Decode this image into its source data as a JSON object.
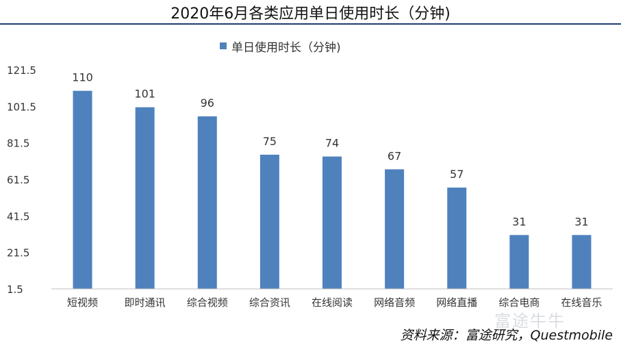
{
  "page": {
    "title": "2020年6月各类应用单日使用时长（分钟)",
    "source_note": "资料来源：富途研究，Questmobile",
    "watermark": "富途牛牛"
  },
  "colors": {
    "bar": "#4f81bd",
    "title_rule": "#1f3c73",
    "axis": "#bfbfbf",
    "text": "#111111"
  },
  "chart_data": {
    "type": "bar",
    "title": "",
    "legend": {
      "position": "top",
      "entries": [
        "单日使用时长（分钟)"
      ]
    },
    "categories": [
      "短视频",
      "即时通讯",
      "综合视频",
      "综合资讯",
      "在线阅读",
      "网络音频",
      "网络直播",
      "综合电商",
      "在线音乐"
    ],
    "series": [
      {
        "name": "单日使用时长（分钟)",
        "values": [
          110,
          101,
          96,
          75,
          74,
          67,
          57,
          31,
          31
        ]
      }
    ],
    "data_labels": [
      "110",
      "101",
      "96",
      "75",
      "74",
      "67",
      "57",
      "31",
      "31"
    ],
    "y_ticks": [
      1.5,
      21.5,
      41.5,
      61.5,
      81.5,
      101.5,
      121.5
    ],
    "y_tick_labels": [
      "1.5",
      "21.5",
      "41.5",
      "61.5",
      "81.5",
      "101.5",
      "121.5"
    ],
    "ylim": [
      1.5,
      121.5
    ],
    "grid": false,
    "xlabel": "",
    "ylabel": ""
  }
}
